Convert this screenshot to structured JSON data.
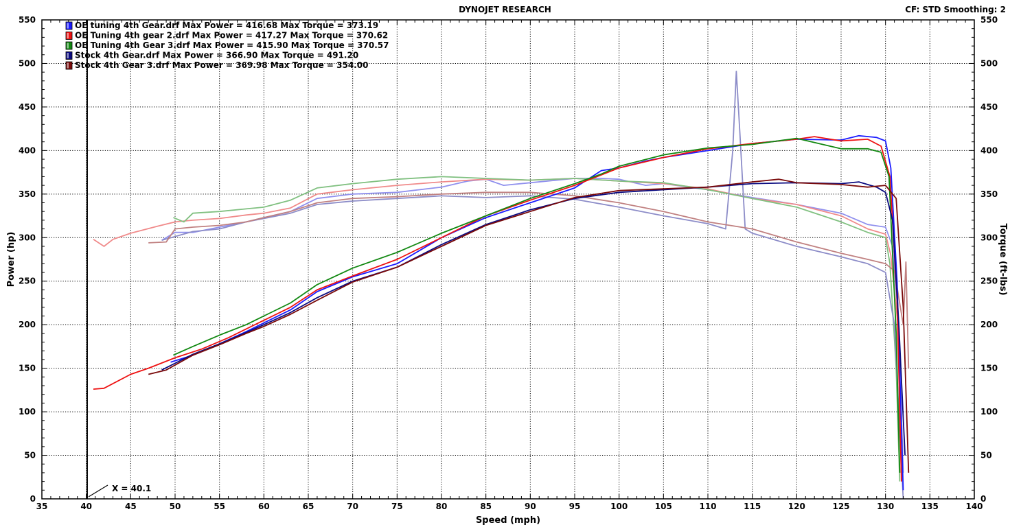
{
  "header": {
    "title": "DYNOJET RESEARCH",
    "cf_info": "CF: STD  Smoothing: 2"
  },
  "chart_data": {
    "type": "line",
    "title": "DYNOJET RESEARCH",
    "xlabel": "Speed (mph)",
    "ylabel_left": "Power (hp)",
    "ylabel_right": "Torque (ft-lbs)",
    "xlim": [
      35,
      140
    ],
    "ylim": [
      0,
      550
    ],
    "x_ticks": [
      35,
      40,
      45,
      50,
      55,
      60,
      65,
      70,
      75,
      80,
      85,
      90,
      95,
      100,
      105,
      110,
      115,
      120,
      125,
      130,
      135,
      140
    ],
    "y_ticks": [
      0,
      50,
      100,
      150,
      200,
      250,
      300,
      350,
      400,
      450,
      500,
      550
    ],
    "grid": true,
    "legend_position": "top-left",
    "cursor": {
      "x": 40.1,
      "label": "X = 40.1"
    },
    "legend": [
      {
        "name": "OE tuning 4th Gear.drf",
        "max_power": "Max Power = 416.68",
        "max_torque": "Max Torque = 373.19",
        "color": "#1a1aff"
      },
      {
        "name": "OE Tuning 4th gear 2.drf",
        "max_power": "Max Power = 417.27",
        "max_torque": "Max Torque = 370.62",
        "color": "#ee1111"
      },
      {
        "name": "OE Tuning 4th Gear 3.drf",
        "max_power": "Max Power = 415.90",
        "max_torque": "Max Torque = 370.57",
        "color": "#118811"
      },
      {
        "name": "Stock 4th Gear.drf",
        "max_power": "Max Power = 366.90",
        "max_torque": "Max Torque = 491.20",
        "color": "#0b0b80"
      },
      {
        "name": "Stock 4th Gear 3.drf",
        "max_power": "Max Power = 369.98",
        "max_torque": "Max Torque = 354.00",
        "color": "#7a0a0a"
      }
    ],
    "series": [
      {
        "name": "OE tuning 4th Gear.drf",
        "measure": "power",
        "color": "#1a1aff",
        "x": [
          49.5,
          52,
          55,
          58,
          60,
          63,
          66,
          70,
          75,
          80,
          85,
          90,
          95,
          98,
          100,
          103,
          105,
          110,
          115,
          120,
          125,
          127,
          129,
          130,
          130.6,
          131.3,
          132
        ],
        "y": [
          157,
          165,
          178,
          192,
          202,
          217,
          238,
          255,
          270,
          300,
          323,
          340,
          357,
          377,
          380,
          388,
          392,
          400,
          408,
          413,
          412,
          417,
          415,
          411,
          380,
          250,
          10
        ]
      },
      {
        "name": "OE Tuning 4th gear 2.drf",
        "measure": "power",
        "color": "#ee1111",
        "x": [
          40.8,
          42,
          45,
          47,
          50,
          53,
          56,
          60,
          63,
          66,
          70,
          75,
          80,
          85,
          90,
          95,
          98,
          100,
          105,
          110,
          115,
          120,
          122,
          125,
          128,
          129.5,
          130.5,
          131.3,
          131.8
        ],
        "y": [
          126,
          127,
          143,
          150,
          162,
          172,
          185,
          205,
          220,
          240,
          256,
          275,
          300,
          325,
          343,
          360,
          372,
          380,
          392,
          402,
          408,
          413,
          416,
          411,
          413,
          405,
          370,
          230,
          20
        ]
      },
      {
        "name": "OE Tuning 4th Gear 3.drf",
        "measure": "power",
        "color": "#118811",
        "x": [
          49.8,
          52,
          55,
          58,
          60,
          63,
          66,
          70,
          75,
          80,
          85,
          90,
          95,
          98,
          100,
          105,
          110,
          115,
          120,
          125,
          128,
          129.5,
          130.4,
          131.2,
          131.6
        ],
        "y": [
          165,
          175,
          188,
          200,
          210,
          225,
          246,
          265,
          283,
          305,
          325,
          345,
          362,
          373,
          382,
          395,
          403,
          407,
          414,
          402,
          402,
          398,
          370,
          190,
          30
        ]
      },
      {
        "name": "Stock 4th Gear.drf",
        "measure": "power",
        "color": "#0b0b80",
        "x": [
          48.5,
          52,
          55,
          58,
          60,
          63,
          66,
          70,
          75,
          80,
          85,
          90,
          95,
          100,
          105,
          110,
          115,
          120,
          125,
          127,
          129,
          130,
          130.8,
          131.5,
          132.2
        ],
        "y": [
          148,
          166,
          178,
          191,
          200,
          214,
          231,
          250,
          266,
          292,
          315,
          332,
          345,
          352,
          355,
          358,
          362,
          363,
          362,
          364,
          358,
          352,
          320,
          200,
          50
        ]
      },
      {
        "name": "Stock 4th Gear 3.drf",
        "measure": "power",
        "color": "#7a0a0a",
        "x": [
          47,
          49,
          52,
          55,
          58,
          60,
          63,
          66,
          70,
          75,
          80,
          85,
          90,
          95,
          100,
          105,
          110,
          115,
          118,
          120,
          125,
          128,
          130,
          131.2,
          132,
          132.6
        ],
        "y": [
          143,
          148,
          165,
          177,
          190,
          198,
          212,
          228,
          249,
          266,
          290,
          314,
          330,
          346,
          354,
          356,
          358,
          364,
          367,
          363,
          361,
          358,
          360,
          345,
          220,
          30
        ]
      },
      {
        "name": "OE tuning 4th Gear.drf",
        "measure": "torque",
        "color": "#9090ee",
        "x": [
          48.5,
          50,
          52,
          55,
          58,
          60,
          63,
          66,
          70,
          75,
          80,
          83,
          85,
          87,
          90,
          95,
          98,
          100,
          103,
          105,
          110,
          115,
          120,
          125,
          128,
          130,
          130.8,
          131.5,
          132
        ],
        "y": [
          297,
          306,
          306,
          312,
          318,
          323,
          330,
          345,
          350,
          352,
          358,
          365,
          367,
          360,
          363,
          368,
          368,
          367,
          360,
          362,
          355,
          346,
          338,
          328,
          315,
          312,
          290,
          200,
          30
        ]
      },
      {
        "name": "OE Tuning 4th gear 2.drf",
        "measure": "torque",
        "color": "#f08a8a",
        "x": [
          40.8,
          42,
          43,
          45,
          48,
          50,
          52,
          55,
          58,
          60,
          63,
          66,
          70,
          75,
          80,
          85,
          90,
          95,
          100,
          105,
          110,
          115,
          120,
          125,
          128,
          130,
          130.6,
          131.4,
          131.8
        ],
        "y": [
          298,
          290,
          298,
          305,
          313,
          318,
          320,
          322,
          326,
          328,
          334,
          350,
          355,
          360,
          364,
          367,
          366,
          368,
          365,
          362,
          356,
          345,
          338,
          325,
          310,
          304,
          280,
          200,
          20
        ]
      },
      {
        "name": "OE Tuning 4th Gear 3.drf",
        "measure": "torque",
        "color": "#80c080",
        "x": [
          49.8,
          51,
          52,
          55,
          58,
          60,
          63,
          66,
          70,
          75,
          80,
          85,
          90,
          95,
          100,
          105,
          110,
          115,
          120,
          125,
          128,
          130,
          130.5,
          131.2,
          131.6
        ],
        "y": [
          323,
          318,
          328,
          330,
          333,
          335,
          343,
          357,
          362,
          367,
          370,
          368,
          366,
          368,
          365,
          363,
          355,
          345,
          335,
          318,
          306,
          300,
          270,
          150,
          20
        ]
      },
      {
        "name": "Stock 4th Gear.drf",
        "measure": "torque",
        "color": "#8c8cc8",
        "x": [
          48.5,
          52,
          55,
          58,
          60,
          63,
          66,
          70,
          75,
          80,
          85,
          90,
          95,
          100,
          105,
          110,
          112,
          112.8,
          113.2,
          113.6,
          114.2,
          115,
          120,
          125,
          128,
          130,
          131,
          132
        ],
        "y": [
          297,
          307,
          310,
          318,
          322,
          328,
          338,
          342,
          345,
          348,
          346,
          348,
          344,
          335,
          325,
          316,
          310,
          400,
          491,
          420,
          310,
          305,
          290,
          278,
          270,
          260,
          200,
          0
        ]
      },
      {
        "name": "Stock 4th Gear 3.drf",
        "measure": "torque",
        "color": "#c08080",
        "x": [
          47,
          49,
          50,
          52,
          55,
          58,
          60,
          63,
          66,
          70,
          75,
          80,
          85,
          90,
          95,
          100,
          105,
          110,
          115,
          120,
          125,
          128,
          130,
          131,
          132,
          132.3,
          132.6
        ],
        "y": [
          294,
          295,
          310,
          312,
          314,
          318,
          323,
          330,
          340,
          345,
          347,
          350,
          352,
          352,
          348,
          340,
          330,
          318,
          310,
          295,
          282,
          275,
          270,
          262,
          200,
          272,
          150
        ]
      }
    ]
  }
}
